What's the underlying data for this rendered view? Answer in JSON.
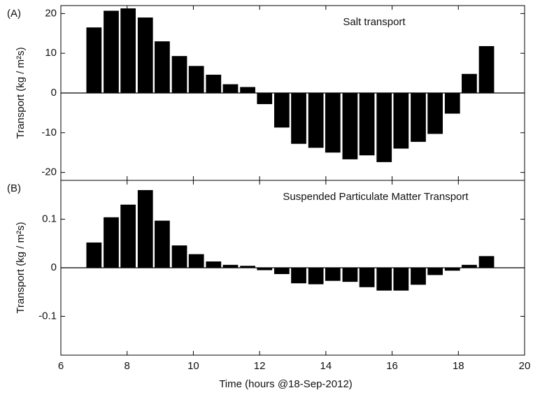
{
  "chart_data": [
    {
      "type": "bar",
      "panel_label": "(A)",
      "annotation": "Salt transport",
      "ylabel": "Transport (kg / m²s)",
      "x": [
        7,
        7.52,
        8.03,
        8.55,
        9.06,
        9.58,
        10.09,
        10.61,
        11.12,
        11.64,
        12.15,
        12.67,
        13.18,
        13.7,
        14.21,
        14.73,
        15.24,
        15.76,
        16.27,
        16.79,
        17.3,
        17.82,
        18.33,
        18.85
      ],
      "values": [
        16.5,
        20.7,
        21.3,
        19,
        13,
        9.3,
        6.8,
        4.6,
        2.2,
        1.5,
        -2.8,
        -8.7,
        -12.8,
        -13.8,
        -15,
        -16.7,
        -15.7,
        -17.4,
        -14,
        -12.3,
        -10.3,
        -5.2,
        4.8,
        11.8
      ],
      "color": "#000000",
      "xlim": [
        6,
        20
      ],
      "xticks": [
        6,
        8,
        10,
        12,
        14,
        16,
        18,
        20
      ],
      "ylim": [
        -22,
        22
      ],
      "yticks": [
        -20,
        -10,
        0,
        10,
        20
      ]
    },
    {
      "type": "bar",
      "panel_label": "(B)",
      "annotation": "Suspended Particulate Matter Transport",
      "ylabel": "Transport (kg / m²s)",
      "xlabel": "Time (hours @18-Sep-2012)",
      "x": [
        7,
        7.52,
        8.03,
        8.55,
        9.06,
        9.58,
        10.09,
        10.61,
        11.12,
        11.64,
        12.15,
        12.67,
        13.18,
        13.7,
        14.21,
        14.73,
        15.24,
        15.76,
        16.27,
        16.79,
        17.3,
        17.82,
        18.33,
        18.85
      ],
      "values": [
        0.052,
        0.104,
        0.13,
        0.16,
        0.097,
        0.046,
        0.028,
        0.013,
        0.006,
        0.004,
        -0.005,
        -0.013,
        -0.032,
        -0.034,
        -0.027,
        -0.029,
        -0.04,
        -0.047,
        -0.047,
        -0.035,
        -0.015,
        -0.006,
        0.006,
        0.024
      ],
      "color": "#000000",
      "xlim": [
        6,
        20
      ],
      "xticks": [
        6,
        8,
        10,
        12,
        14,
        16,
        18,
        20
      ],
      "ylim": [
        -0.18,
        0.18
      ],
      "yticks": [
        -0.1,
        0,
        0.1
      ]
    }
  ]
}
